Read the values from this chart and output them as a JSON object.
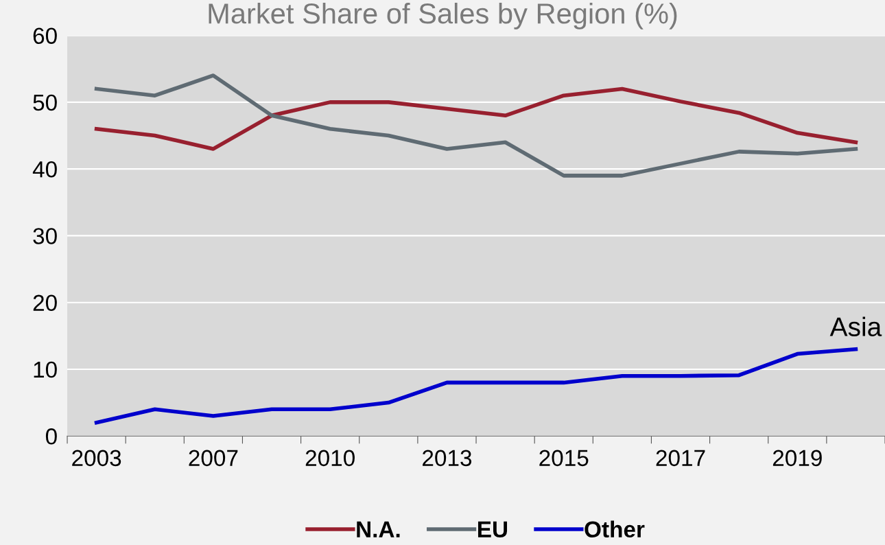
{
  "chart_data": {
    "type": "line",
    "title": "Market Share of Sales by Region (%)",
    "categories": [
      "2003",
      null,
      "2007",
      null,
      "2010",
      null,
      "2013",
      null,
      "2015",
      null,
      "2017",
      null,
      "2019",
      null
    ],
    "series": [
      {
        "name": "N.A.",
        "color": "#98202f",
        "values": [
          46,
          45,
          43,
          48,
          50,
          50,
          49,
          48,
          51,
          52,
          50.1,
          48.4,
          45.4,
          44
        ]
      },
      {
        "name": "EU",
        "color": "#5f6b73",
        "values": [
          52,
          51,
          54,
          48,
          46,
          45,
          43,
          44,
          39,
          39,
          40.8,
          42.6,
          42.3,
          43
        ]
      },
      {
        "name": "Other",
        "color": "#0000cc",
        "values": [
          2,
          4,
          3,
          4,
          4,
          5,
          8,
          8,
          8,
          9,
          9,
          9.1,
          12.3,
          13
        ]
      }
    ],
    "annotations": [
      "Asia"
    ],
    "ylim": [
      0,
      60
    ],
    "yticks": [
      0,
      10,
      20,
      30,
      40,
      50,
      60
    ],
    "grid": "y",
    "legend": "bottom",
    "marker": "none",
    "line_style": "solid"
  }
}
